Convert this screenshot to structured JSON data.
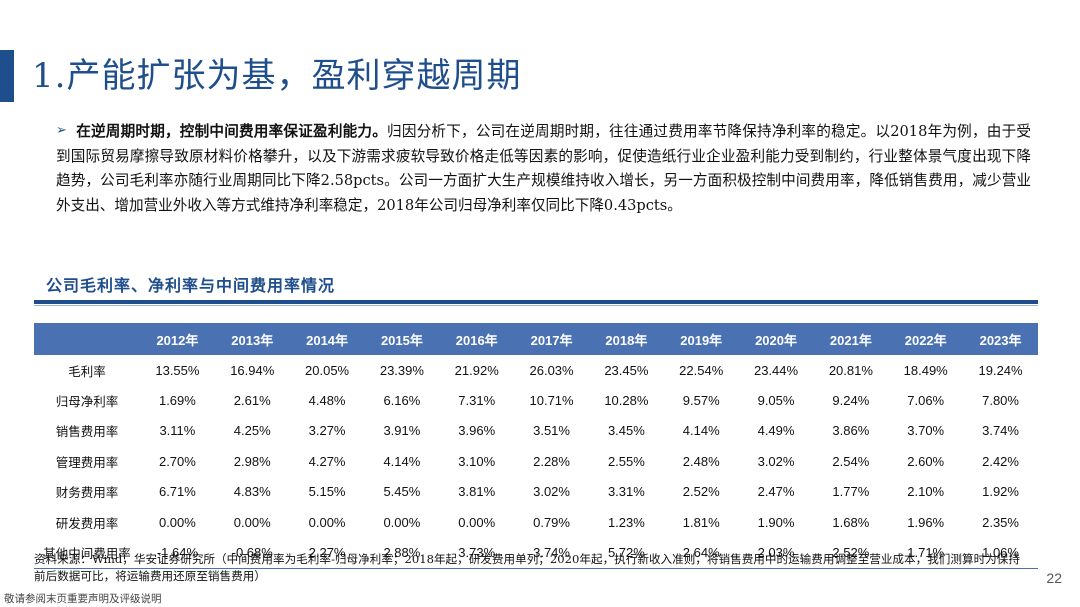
{
  "slide": {
    "title": "1.产能扩张为基，盈利穿越周期",
    "summary_bold": "在逆周期时期，控制中间费用率保证盈利能力。",
    "summary_text": "归因分析下，公司在逆周期时期，往往通过费用率节降保持净利率的稳定。以2018年为例，由于受到国际贸易摩擦导致原材料价格攀升，以及下游需求疲软导致价格走低等因素的影响，促使造纸行业企业盈利能力受到制约，行业整体景气度出现下降趋势，公司毛利率亦随行业周期同比下降2.58pcts。公司一方面扩大生产规模维持收入增长，另一方面积极控制中间费用率，降低销售费用，减少营业外支出、增加营业外收入等方式维持净利率稳定，2018年公司归母净利率仅同比下降0.43pcts。",
    "table_title": "公司毛利率、净利率与中间费用率情况",
    "source_note": "资料来源：Wind，华安证券研究所（中间费用率为毛利率-归母净利率；2018年起，研发费用单列；2020年起，执行新收入准则，将销售费用中的运输费用调整至营业成本，我们测算时为保持前后数据可比，将运输费用还原至销售费用）",
    "page_number": "22",
    "footer": "敬请参阅末页重要声明及评级说明",
    "accent_color": "#1f4e8c",
    "header_fill": "#4a72b3"
  },
  "table": {
    "years": [
      "2012年",
      "2013年",
      "2014年",
      "2015年",
      "2016年",
      "2017年",
      "2018年",
      "2019年",
      "2020年",
      "2021年",
      "2022年",
      "2023年"
    ],
    "rows": [
      {
        "label": "毛利率",
        "values": [
          "13.55%",
          "16.94%",
          "20.05%",
          "23.39%",
          "21.92%",
          "26.03%",
          "23.45%",
          "22.54%",
          "23.44%",
          "20.81%",
          "18.49%",
          "19.24%"
        ]
      },
      {
        "label": "归母净利率",
        "values": [
          "1.69%",
          "2.61%",
          "4.48%",
          "6.16%",
          "7.31%",
          "10.71%",
          "10.28%",
          "9.57%",
          "9.05%",
          "9.24%",
          "7.06%",
          "7.80%"
        ]
      },
      {
        "label": "销售费用率",
        "values": [
          "3.11%",
          "4.25%",
          "3.27%",
          "3.91%",
          "3.96%",
          "3.51%",
          "3.45%",
          "4.14%",
          "4.49%",
          "3.86%",
          "3.70%",
          "3.74%"
        ]
      },
      {
        "label": "管理费用率",
        "values": [
          "2.70%",
          "2.98%",
          "4.27%",
          "4.14%",
          "3.10%",
          "2.28%",
          "2.55%",
          "2.48%",
          "3.02%",
          "2.54%",
          "2.60%",
          "2.42%"
        ]
      },
      {
        "label": "财务费用率",
        "values": [
          "6.71%",
          "4.83%",
          "5.15%",
          "5.45%",
          "3.81%",
          "3.02%",
          "3.31%",
          "2.52%",
          "2.47%",
          "1.77%",
          "2.10%",
          "1.92%"
        ]
      },
      {
        "label": "研发费用率",
        "values": [
          "0.00%",
          "0.00%",
          "0.00%",
          "0.00%",
          "0.00%",
          "0.79%",
          "1.23%",
          "1.81%",
          "1.90%",
          "1.68%",
          "1.96%",
          "2.35%"
        ]
      },
      {
        "label": "其他中间费用率",
        "values": [
          "-1.64%",
          "-0.68%",
          "2.27%",
          "2.88%",
          "3.73%",
          "3.74%",
          "5.72%",
          "2.64%",
          "2.03%",
          "2.52%",
          "1.71%",
          "1.06%"
        ]
      }
    ]
  }
}
